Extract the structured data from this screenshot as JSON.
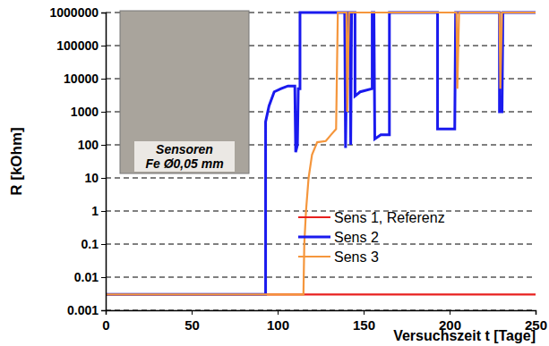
{
  "chart_data": {
    "type": "line",
    "x_label": "Versuchszeit t [Tage]",
    "y_label": "R [kOhm]",
    "annotations": [
      "Sensoren",
      "Fe Ø0,05 mm"
    ],
    "log": "y",
    "grid": true,
    "legend": "right",
    "xlim": [
      0,
      250
    ],
    "xticks": [
      0,
      50,
      100,
      150,
      200,
      250
    ],
    "ylim": [
      0.001,
      1000000
    ],
    "yticks": [
      0.001,
      0.01,
      0.1,
      1,
      10,
      100,
      1000,
      10000,
      100000,
      1000000
    ],
    "series": [
      {
        "name": "Sens 1, Referenz",
        "color": "#e8201e",
        "x": [
          0,
          250
        ],
        "values": [
          0.003,
          0.003
        ]
      },
      {
        "name": "Sens 2",
        "color": "#1a1aee",
        "x": [
          0,
          93,
          93,
          95,
          98,
          102,
          106,
          110,
          110.5,
          111.5,
          112,
          113,
          113,
          139,
          139.5,
          140.5,
          142,
          142.5,
          143,
          145,
          145,
          148,
          155,
          155,
          156,
          156.5,
          160,
          165,
          165,
          193,
          193,
          203,
          203.5,
          229,
          229,
          230.5,
          231,
          250
        ],
        "values": [
          0.003,
          0.003,
          500,
          1500,
          4000,
          5000,
          6000,
          6000,
          60,
          100,
          5000,
          5000,
          1000000,
          1000000,
          80,
          1000000,
          1000000,
          100,
          1000000,
          1000000,
          3000,
          4000,
          5000,
          1000000,
          1000000,
          150,
          200,
          200,
          1000000,
          1000000,
          300,
          300,
          1000000,
          1000000,
          1000,
          1000,
          1000000,
          1000000
        ]
      },
      {
        "name": "Sens 3",
        "color": "#f5963c",
        "x": [
          0,
          115,
          115.5,
          116.5,
          118,
          120,
          123,
          128,
          131,
          134,
          135,
          140,
          140.5,
          141.5,
          204,
          204.5,
          205.5,
          229,
          229.5,
          230.5,
          250
        ],
        "values": [
          0.003,
          0.003,
          0.1,
          1,
          10,
          50,
          120,
          130,
          200,
          300,
          1000000,
          1000000,
          1000,
          1000000,
          1000000,
          5000,
          1000000,
          1000000,
          5000,
          1000000,
          1000000
        ]
      }
    ]
  }
}
